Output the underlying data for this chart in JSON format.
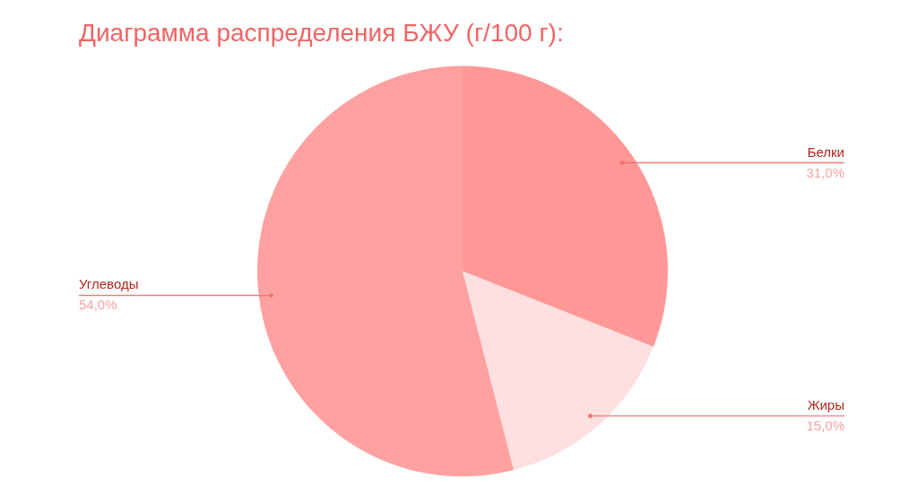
{
  "chart_data": {
    "type": "pie",
    "title": "Диаграмма распределения БЖУ (г/100 г):",
    "categories": [
      "Белки",
      "Жиры",
      "Углеводы"
    ],
    "values": [
      31,
      15,
      54
    ],
    "colors": [
      "#ff9896",
      "#ffdfdf",
      "#ffa1a1"
    ],
    "value_labels": [
      "31,0%",
      "15,0%",
      "54,0%"
    ]
  }
}
